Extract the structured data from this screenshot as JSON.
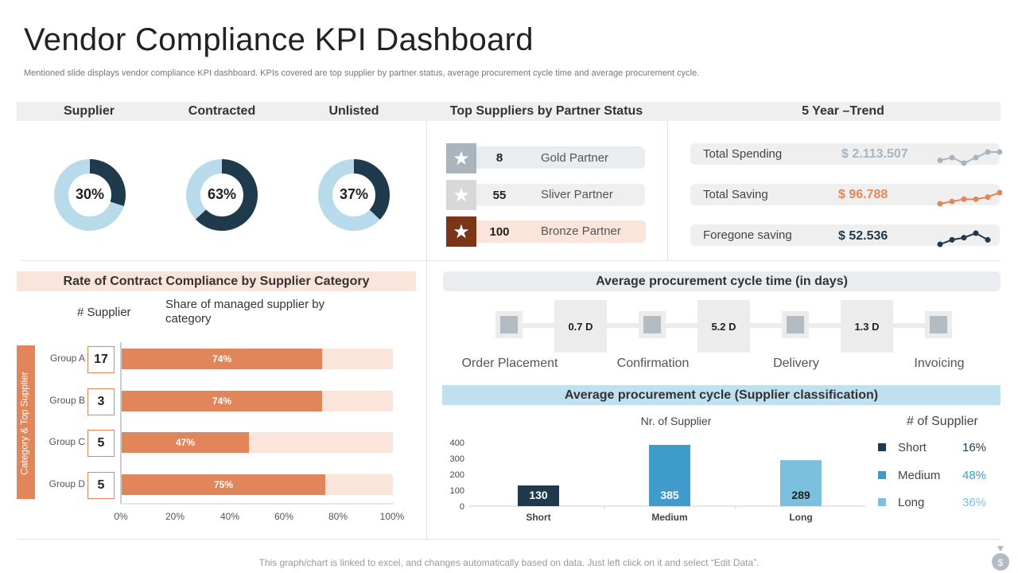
{
  "header": {
    "title": "Vendor Compliance KPI Dashboard",
    "subtitle": "Mentioned slide displays vendor compliance KPI dashboard. KPIs covered are  top supplier by partner status, average procurement cycle time and average procurement cycle."
  },
  "top_headers": {
    "supplier": "Supplier",
    "contracted": "Contracted",
    "unlisted": "Unlisted",
    "partner_status": "Top Suppliers by Partner Status",
    "trend": "5 Year –Trend"
  },
  "donuts": [
    {
      "label": "30%",
      "value": 30
    },
    {
      "label": "63%",
      "value": 63
    },
    {
      "label": "37%",
      "value": 37
    }
  ],
  "partners": [
    {
      "count": "8",
      "name": "Gold Partner",
      "icon": "star-icon"
    },
    {
      "count": "55",
      "name": "Sliver Partner",
      "icon": "star-icon"
    },
    {
      "count": "100",
      "name": "Bronze Partner",
      "icon": "star-icon"
    }
  ],
  "trend": [
    {
      "label": "Total Spending",
      "value": "$ 2.113.507",
      "color": "#a7b5c0",
      "points": [
        2,
        3,
        1,
        3,
        5,
        5
      ]
    },
    {
      "label": "Total Saving",
      "value": "$ 96.788",
      "color": "#e0865a",
      "points": [
        1,
        2,
        3,
        3,
        4,
        6
      ]
    },
    {
      "label": "Foregone saving",
      "value": "$ 52.536",
      "color": "#1f3a4d",
      "points": [
        1,
        3,
        4,
        6,
        3
      ]
    }
  ],
  "compliance": {
    "title": "Rate of Contract  Compliance by Supplier Category",
    "col_supplier": "# Supplier",
    "col_share": "Share of managed supplier by category",
    "side_label": "Category & Top Supplier",
    "xticks": [
      "0%",
      "20%",
      "40%",
      "60%",
      "80%",
      "100%"
    ],
    "rows": [
      {
        "group": "Group A",
        "count": "17",
        "label": "74%"
      },
      {
        "group": "Group B",
        "count": "3",
        "label": "74%"
      },
      {
        "group": "Group C",
        "count": "5",
        "label": "47%"
      },
      {
        "group": "Group D",
        "count": "5",
        "label": "75%"
      }
    ]
  },
  "cycle_time": {
    "title": "Average procurement cycle time (in days)",
    "steps": [
      "Order Placement",
      "Confirmation",
      "Delivery",
      "Invoicing"
    ],
    "durations": [
      "0.7 D",
      "5.2 D",
      "1.3 D"
    ]
  },
  "cycle_class": {
    "title": "Average procurement cycle (Supplier classification)",
    "chart_title": "Nr. of Supplier",
    "legend_title": "# of Supplier",
    "legend": [
      {
        "name": "Short",
        "pct": "16%",
        "color": "#1f3a4d"
      },
      {
        "name": "Medium",
        "pct": "48%",
        "color": "#3e9bcb"
      },
      {
        "name": "Long",
        "pct": "36%",
        "color": "#7cc0e0"
      }
    ]
  },
  "chart_data": [
    {
      "type": "bar",
      "orientation": "horizontal",
      "title": "Share of managed supplier by category",
      "categories": [
        "Group A",
        "Group B",
        "Group C",
        "Group D"
      ],
      "values": [
        74,
        74,
        47,
        75
      ],
      "xlim": [
        0,
        100
      ],
      "xlabel": "",
      "ylabel": ""
    },
    {
      "type": "bar",
      "title": "Nr. of Supplier",
      "categories": [
        "Short",
        "Medium",
        "Long"
      ],
      "values": [
        130,
        385,
        289
      ],
      "value_labels": [
        "130",
        "385",
        "289"
      ],
      "colors": [
        "#1f3a4d",
        "#3e9bcb",
        "#7cc0e0"
      ],
      "yticks": [
        "0",
        "100",
        "200",
        "300",
        "400"
      ],
      "ylim": [
        0,
        400
      ],
      "xlabel": "",
      "ylabel": ""
    }
  ],
  "footer": "This graph/chart is linked to excel, and changes automatically based on data. Just left click on it and select “Edit Data”."
}
